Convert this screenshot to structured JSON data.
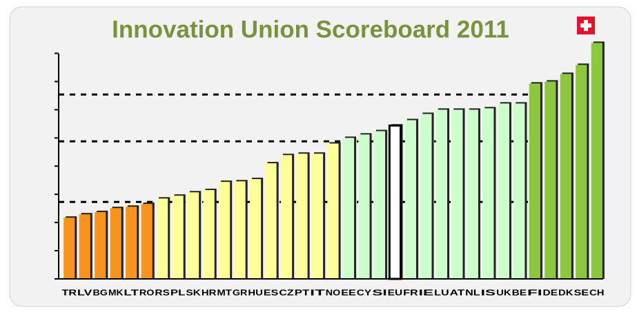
{
  "chart_data": {
    "type": "bar",
    "title": "Innovation Union Scoreboard 2011",
    "categories": [
      "TR",
      "LV",
      "BG",
      "MK",
      "LT",
      "RO",
      "RS",
      "PL",
      "SK",
      "HR",
      "MT",
      "GR",
      "HU",
      "ES",
      "CZ",
      "PT",
      "IT",
      "NO",
      "EE",
      "CY",
      "SI",
      "EU",
      "FR",
      "IE",
      "LU",
      "AT",
      "NL",
      "IS",
      "UK",
      "BE",
      "FI",
      "DE",
      "DK",
      "SE",
      "CH"
    ],
    "values": [
      0.217,
      0.229,
      0.237,
      0.251,
      0.256,
      0.266,
      0.285,
      0.295,
      0.307,
      0.315,
      0.344,
      0.346,
      0.354,
      0.41,
      0.439,
      0.444,
      0.444,
      0.48,
      0.5,
      0.512,
      0.524,
      0.544,
      0.563,
      0.585,
      0.6,
      0.6,
      0.6,
      0.605,
      0.622,
      0.622,
      0.693,
      0.7,
      0.727,
      0.759,
      0.837
    ],
    "colors": [
      "#f7941d",
      "#f7941d",
      "#f7941d",
      "#f7941d",
      "#f7941d",
      "#f7941d",
      "#ffff99",
      "#ffff99",
      "#ffff99",
      "#ffff99",
      "#ffff99",
      "#ffff99",
      "#ffff99",
      "#ffff99",
      "#ffff99",
      "#ffff99",
      "#ffff99",
      "#ffff99",
      "#ccffcc",
      "#ccffcc",
      "#ccffcc",
      "#ffffff",
      "#ccffcc",
      "#ccffcc",
      "#ccffcc",
      "#ccffcc",
      "#ccffcc",
      "#ccffcc",
      "#ccffcc",
      "#ccffcc",
      "#8dc63f",
      "#8dc63f",
      "#8dc63f",
      "#8dc63f",
      "#8dc63f"
    ],
    "reference_lines": [
      0.273,
      0.488,
      0.654
    ],
    "ylim": [
      0,
      0.85
    ],
    "yticks": [
      0,
      0.1,
      0.2,
      0.3,
      0.4,
      0.5,
      0.6,
      0.7,
      0.8
    ]
  }
}
